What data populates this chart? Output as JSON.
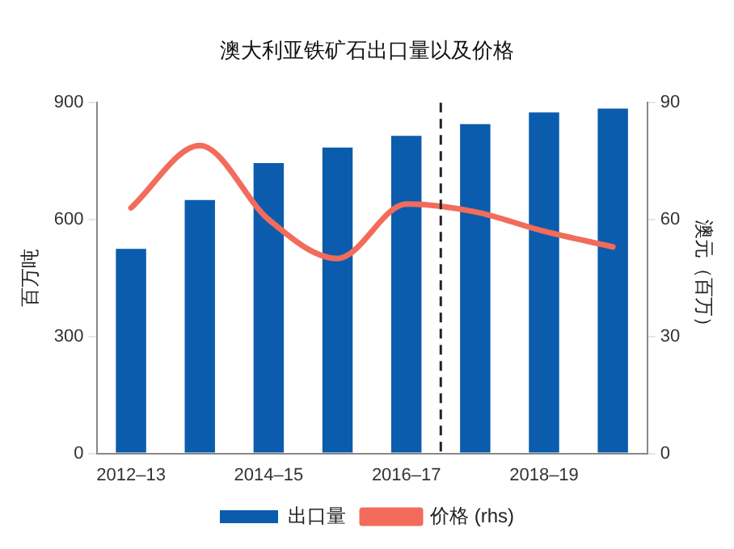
{
  "chart_data": {
    "type": "bar",
    "title": "澳大利亚铁矿石出口量以及价格",
    "categories": [
      "2012–13",
      null,
      "2014–15",
      null,
      "2016–17",
      null,
      "2018–19",
      null
    ],
    "series": [
      {
        "name": "出口量",
        "color": "#0b5cad",
        "values": [
          525,
          650,
          745,
          785,
          815,
          845,
          875,
          885
        ]
      },
      {
        "name": "价格 (rhs)",
        "type": "line",
        "axis": "y2",
        "color": "#f26b5b",
        "values": [
          63,
          79,
          60,
          50,
          64,
          62,
          57,
          53
        ]
      }
    ],
    "ylabel": "百万吨",
    "y2label": "澳元（百万）",
    "ylim": [
      0,
      900
    ],
    "yticks": [
      0,
      300,
      600,
      900
    ],
    "y2lim": [
      0,
      90
    ],
    "y2ticks": [
      0,
      30,
      60,
      90
    ],
    "grid": false,
    "legend": "bottom",
    "marker": "none"
  }
}
